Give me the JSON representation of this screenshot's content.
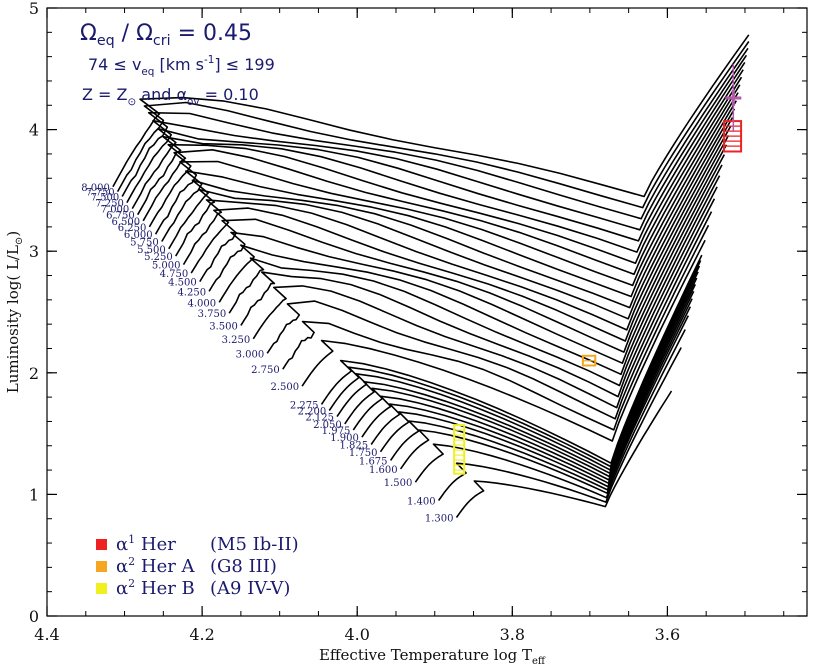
{
  "chart_data": {
    "type": "line",
    "title_lines": [
      {
        "parts": [
          {
            "t": "Ω"
          },
          {
            "t": "eq",
            "sub": true
          },
          {
            "t": " / Ω"
          },
          {
            "t": "cri",
            "sub": true
          },
          {
            "t": " = 0.45"
          }
        ]
      },
      {
        "parts": [
          {
            "t": "74 ≤ v"
          },
          {
            "t": "eq",
            "sub": true
          },
          {
            "t": " [km s"
          },
          {
            "t": "-1",
            "sup": true
          },
          {
            "t": "] ≤ 199"
          }
        ]
      },
      {
        "parts": [
          {
            "t": "Z = Z"
          },
          {
            "t": "⊙",
            "sub": true
          },
          {
            "t": " and α"
          },
          {
            "t": "ov",
            "sub": true
          },
          {
            "t": " = 0.10"
          }
        ]
      }
    ],
    "xlabel_main": "Effective Temperature log T",
    "xlabel_sub": "eff",
    "ylabel_main": "Luminosity log( L/L",
    "ylabel_sub": "⊙",
    "ylabel_end": ")",
    "xlim": [
      4.4,
      3.42
    ],
    "ylim": [
      0,
      5
    ],
    "xticks": [
      4.4,
      4.2,
      4.0,
      3.8,
      3.6
    ],
    "xtick_labels": [
      "4.4",
      "4.2",
      "4.0",
      "3.8",
      "3.6"
    ],
    "yticks": [
      0,
      1,
      2,
      3,
      4,
      5
    ],
    "ytick_labels": [
      "0",
      "1",
      "2",
      "3",
      "4",
      "5"
    ],
    "grid": false,
    "series_color": "#000000",
    "tracks": [
      {
        "mass": "8.000",
        "zams": [
          4.315,
          3.53
        ]
      },
      {
        "mass": "7.750",
        "zams": [
          4.309,
          3.49
        ]
      },
      {
        "mass": "7.500",
        "zams": [
          4.303,
          3.45
        ]
      },
      {
        "mass": "7.250",
        "zams": [
          4.297,
          3.4
        ]
      },
      {
        "mass": "7.000",
        "zams": [
          4.29,
          3.35
        ]
      },
      {
        "mass": "6.750",
        "zams": [
          4.283,
          3.3
        ]
      },
      {
        "mass": "6.500",
        "zams": [
          4.276,
          3.25
        ]
      },
      {
        "mass": "6.250",
        "zams": [
          4.268,
          3.2
        ]
      },
      {
        "mass": "6.000",
        "zams": [
          4.26,
          3.14
        ]
      },
      {
        "mass": "5.750",
        "zams": [
          4.252,
          3.08
        ]
      },
      {
        "mass": "5.500",
        "zams": [
          4.243,
          3.02
        ]
      },
      {
        "mass": "5.250",
        "zams": [
          4.234,
          2.96
        ]
      },
      {
        "mass": "5.000",
        "zams": [
          4.224,
          2.89
        ]
      },
      {
        "mass": "4.750",
        "zams": [
          4.214,
          2.82
        ]
      },
      {
        "mass": "4.500",
        "zams": [
          4.203,
          2.75
        ]
      },
      {
        "mass": "4.250",
        "zams": [
          4.191,
          2.67
        ]
      },
      {
        "mass": "4.000",
        "zams": [
          4.178,
          2.58
        ]
      },
      {
        "mass": "3.750",
        "zams": [
          4.165,
          2.49
        ]
      },
      {
        "mass": "3.500",
        "zams": [
          4.15,
          2.39
        ]
      },
      {
        "mass": "3.250",
        "zams": [
          4.134,
          2.28
        ]
      },
      {
        "mass": "3.000",
        "zams": [
          4.116,
          2.16
        ]
      },
      {
        "mass": "2.750",
        "zams": [
          4.096,
          2.03
        ]
      },
      {
        "mass": "2.500",
        "zams": [
          4.071,
          1.89
        ]
      },
      {
        "mass": "2.275",
        "zams": [
          4.046,
          1.74
        ]
      },
      {
        "mass": "2.200",
        "zams": [
          4.036,
          1.69
        ]
      },
      {
        "mass": "2.125",
        "zams": [
          4.026,
          1.64
        ]
      },
      {
        "mass": "2.050",
        "zams": [
          4.016,
          1.58
        ]
      },
      {
        "mass": "1.975",
        "zams": [
          4.005,
          1.53
        ]
      },
      {
        "mass": "1.900",
        "zams": [
          3.994,
          1.47
        ]
      },
      {
        "mass": "1.825",
        "zams": [
          3.982,
          1.41
        ]
      },
      {
        "mass": "1.750",
        "zams": [
          3.97,
          1.35
        ]
      },
      {
        "mass": "1.675",
        "zams": [
          3.957,
          1.28
        ]
      },
      {
        "mass": "1.600",
        "zams": [
          3.944,
          1.21
        ]
      },
      {
        "mass": "1.500",
        "zams": [
          3.925,
          1.1
        ]
      },
      {
        "mass": "1.400",
        "zams": [
          3.895,
          0.95
        ]
      },
      {
        "mass": "1.300",
        "zams": [
          3.872,
          0.81
        ]
      }
    ],
    "stars": [
      {
        "name": "α¹ Her",
        "spectral": "(M5 Ib-II)",
        "color": "#ee2222",
        "logT": [
          3.527,
          3.505
        ],
        "logL": [
          3.82,
          4.07
        ]
      },
      {
        "name": "α² Her A",
        "spectral": "(G8 III)",
        "color": "#f5a623",
        "logT": [
          3.709,
          3.693
        ],
        "logL": [
          2.06,
          2.14
        ]
      },
      {
        "name": "α² Her B",
        "spectral": "(A9 IV-V)",
        "color": "#f0f020",
        "logT": [
          3.875,
          3.862
        ],
        "logL": [
          1.17,
          1.57
        ]
      }
    ],
    "observed_point": {
      "logT": 3.515,
      "logL": 4.26,
      "err_logL": 0.28,
      "color": "#b05aa8"
    },
    "legend": [
      {
        "sup": "1",
        "label_a": " Her",
        "label_b": "(M5 Ib-II)",
        "color": "#ee2222"
      },
      {
        "sup": "2",
        "label_a": " Her A",
        "label_b": "(G8 III)",
        "color": "#f5a623"
      },
      {
        "sup": "2",
        "label_a": " Her B",
        "label_b": "(A9 IV-V)",
        "color": "#f0f020"
      }
    ],
    "legend_placement": "bottom-left"
  }
}
